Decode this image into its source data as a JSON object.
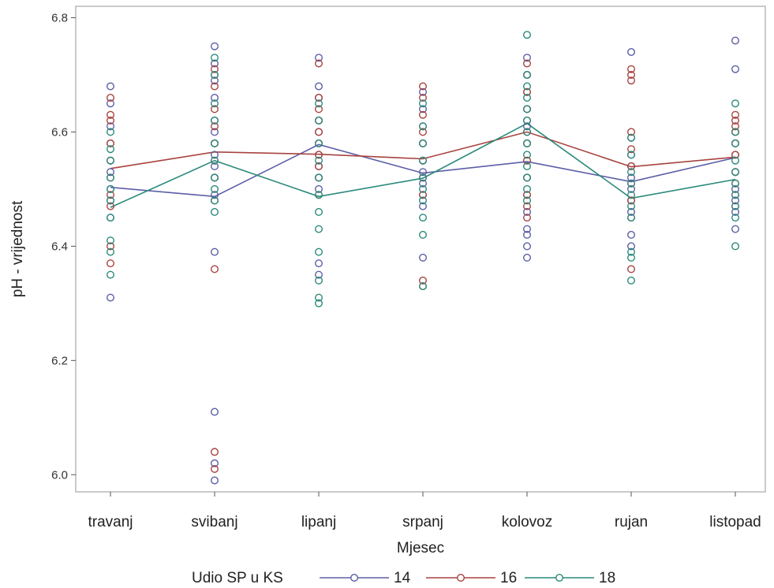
{
  "chart_data": {
    "type": "scatter",
    "xlabel": "Mjesec",
    "ylabel": "pH - vrijednost",
    "categories": [
      "travanj",
      "svibanj",
      "lipanj",
      "srpanj",
      "kolovoz",
      "rujan",
      "listopad"
    ],
    "ylim": [
      5.97,
      6.82
    ],
    "yticks": [
      6.0,
      6.2,
      6.4,
      6.6,
      6.8
    ],
    "grid": false,
    "legend": {
      "title": "Udio SP u KS",
      "position": "bottom"
    },
    "series": [
      {
        "name": "14",
        "color": "#5b5ea6",
        "mean": [
          6.503,
          6.487,
          6.578,
          6.528,
          6.548,
          6.513,
          6.555
        ],
        "points": [
          [
            6.68,
            6.65,
            6.61,
            6.58,
            6.55,
            6.53,
            6.5,
            6.48,
            6.45,
            6.31
          ],
          [
            6.75,
            6.72,
            6.69,
            6.66,
            6.62,
            6.6,
            6.58,
            6.56,
            6.54,
            6.52,
            6.49,
            6.39,
            6.11,
            6.02,
            5.99
          ],
          [
            6.73,
            6.68,
            6.66,
            6.62,
            6.6,
            6.58,
            6.56,
            6.54,
            6.52,
            6.5,
            6.37,
            6.35
          ],
          [
            6.67,
            6.64,
            6.61,
            6.58,
            6.55,
            6.53,
            6.51,
            6.49,
            6.47,
            6.38
          ],
          [
            6.73,
            6.7,
            6.67,
            6.64,
            6.61,
            6.58,
            6.55,
            6.52,
            6.49,
            6.46,
            6.43,
            6.42,
            6.4,
            6.38
          ],
          [
            6.74,
            6.59,
            6.56,
            6.54,
            6.52,
            6.5,
            6.48,
            6.46,
            6.42,
            6.4
          ],
          [
            6.76,
            6.71,
            6.6,
            6.58,
            6.56,
            6.53,
            6.5,
            6.48,
            6.46,
            6.43
          ]
        ]
      },
      {
        "name": "16",
        "color": "#a8433f",
        "mean": [
          6.536,
          6.565,
          6.561,
          6.553,
          6.6,
          6.539,
          6.556
        ],
        "points": [
          [
            6.66,
            6.63,
            6.62,
            6.58,
            6.55,
            6.52,
            6.49,
            6.47,
            6.4,
            6.37
          ],
          [
            6.71,
            6.7,
            6.68,
            6.64,
            6.61,
            6.58,
            6.55,
            6.52,
            6.48,
            6.36,
            6.04,
            6.01
          ],
          [
            6.72,
            6.66,
            6.64,
            6.62,
            6.6,
            6.58,
            6.56,
            6.54,
            6.52,
            6.49
          ],
          [
            6.68,
            6.66,
            6.63,
            6.6,
            6.58,
            6.55,
            6.52,
            6.49,
            6.34,
            6.33
          ],
          [
            6.72,
            6.7,
            6.67,
            6.64,
            6.62,
            6.6,
            6.58,
            6.55,
            6.52,
            6.49,
            6.47,
            6.45
          ],
          [
            6.71,
            6.7,
            6.69,
            6.6,
            6.57,
            6.54,
            6.51,
            6.48,
            6.45,
            6.36
          ],
          [
            6.63,
            6.62,
            6.61,
            6.6,
            6.58,
            6.56,
            6.53,
            6.51,
            6.49,
            6.47
          ]
        ]
      },
      {
        "name": "18",
        "color": "#2a8a7a",
        "mean": [
          6.468,
          6.55,
          6.487,
          6.519,
          6.615,
          6.484,
          6.517
        ],
        "points": [
          [
            6.6,
            6.57,
            6.55,
            6.52,
            6.5,
            6.48,
            6.45,
            6.41,
            6.39,
            6.35
          ],
          [
            6.73,
            6.7,
            6.65,
            6.62,
            6.58,
            6.55,
            6.52,
            6.5,
            6.48,
            6.46
          ],
          [
            6.65,
            6.62,
            6.58,
            6.55,
            6.52,
            6.49,
            6.46,
            6.43,
            6.39,
            6.34,
            6.31,
            6.3
          ],
          [
            6.65,
            6.61,
            6.58,
            6.55,
            6.52,
            6.5,
            6.48,
            6.45,
            6.42,
            6.33
          ],
          [
            6.77,
            6.7,
            6.68,
            6.66,
            6.64,
            6.62,
            6.6,
            6.58,
            6.56,
            6.54,
            6.52,
            6.5,
            6.48
          ],
          [
            6.59,
            6.56,
            6.53,
            6.51,
            6.49,
            6.47,
            6.45,
            6.39,
            6.38,
            6.34
          ],
          [
            6.65,
            6.6,
            6.58,
            6.55,
            6.53,
            6.51,
            6.49,
            6.47,
            6.45,
            6.4
          ]
        ]
      }
    ]
  }
}
